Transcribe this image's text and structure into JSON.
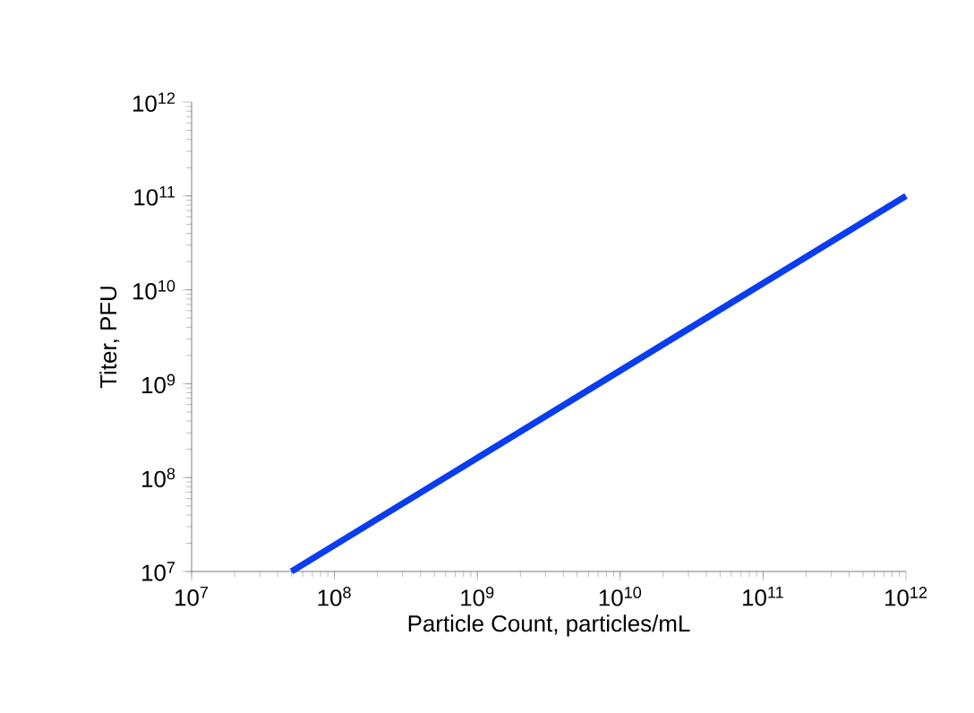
{
  "chart_data": {
    "type": "line",
    "xlabel": "Particle Count, particles/mL",
    "ylabel": "Titer, PFU",
    "log": "xy",
    "xlim": [
      10000000.0,
      1000000000000.0
    ],
    "ylim": [
      10000000.0,
      1000000000000.0
    ],
    "xticks": [
      {
        "value": 10000000.0,
        "label": "10$^{7}$"
      },
      {
        "value": 100000000.0,
        "label": "10$^{8}$"
      },
      {
        "value": 1000000000.0,
        "label": "10$^{9}$"
      },
      {
        "value": 10000000000.0,
        "label": "10$^{10}$"
      },
      {
        "value": 100000000000.0,
        "label": "10$^{11}$"
      },
      {
        "value": 1000000000000.0,
        "label": "10$^{12}$"
      }
    ],
    "yticks": [
      {
        "value": 10000000.0,
        "label": "10$^{7}$"
      },
      {
        "value": 100000000.0,
        "label": "10$^{8}$"
      },
      {
        "value": 1000000000.0,
        "label": "10$^{9}$"
      },
      {
        "value": 10000000000.0,
        "label": "10$^{10}$"
      },
      {
        "value": 100000000000.0,
        "label": "10$^{11}$"
      },
      {
        "value": 1000000000000.0,
        "label": "10$^{12}$"
      }
    ],
    "series": [
      {
        "color": "#0a3cf0",
        "x": [
          50000000.0,
          1000000000000.0
        ],
        "values": [
          10000000.0,
          100000000000.0
        ]
      }
    ],
    "grid": false,
    "marker": "none",
    "line_style": "solid"
  }
}
